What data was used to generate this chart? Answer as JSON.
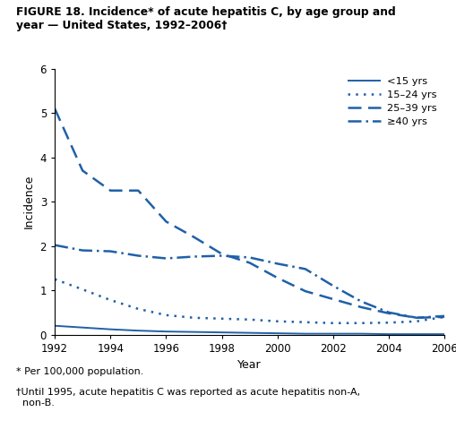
{
  "title_line1": "FIGURE 18. Incidence* of acute hepatitis C, by age group and",
  "title_line2": "year — United States, 1992–2006†",
  "xlabel": "Year",
  "ylabel": "Incidence",
  "xlim": [
    1992,
    2006
  ],
  "ylim": [
    0,
    6
  ],
  "yticks": [
    0,
    1,
    2,
    3,
    4,
    5,
    6
  ],
  "xticks": [
    1992,
    1994,
    1996,
    1998,
    2000,
    2002,
    2004,
    2006
  ],
  "footnote1": "* Per 100,000 population.",
  "footnote2": "†Until 1995, acute hepatitis C was reported as acute hepatitis non-A,\n  non-B.",
  "color": "#2060a8",
  "series": [
    {
      "label": "<15 yrs",
      "linestyle": "solid",
      "linewidth": 1.4,
      "years": [
        1992,
        1993,
        1994,
        1995,
        1996,
        1997,
        1998,
        1999,
        2000,
        2001,
        2002,
        2003,
        2004,
        2005,
        2006
      ],
      "values": [
        0.2,
        0.16,
        0.12,
        0.09,
        0.07,
        0.06,
        0.05,
        0.04,
        0.03,
        0.02,
        0.02,
        0.02,
        0.01,
        0.01,
        0.01
      ]
    },
    {
      "label": "15–24 yrs",
      "linestyle": "dotted",
      "linewidth": 1.8,
      "years": [
        1992,
        1993,
        1994,
        1995,
        1996,
        1997,
        1998,
        1999,
        2000,
        2001,
        2002,
        2003,
        2004,
        2005,
        2006
      ],
      "values": [
        1.25,
        1.02,
        0.78,
        0.58,
        0.44,
        0.38,
        0.36,
        0.34,
        0.3,
        0.28,
        0.26,
        0.26,
        0.27,
        0.3,
        0.4
      ]
    },
    {
      "label": "25–39 yrs",
      "linestyle": "dashed",
      "linewidth": 1.8,
      "years": [
        1992,
        1993,
        1994,
        1995,
        1996,
        1997,
        1998,
        1999,
        2000,
        2001,
        2002,
        2003,
        2004,
        2005,
        2006
      ],
      "values": [
        5.1,
        3.7,
        3.25,
        3.25,
        2.55,
        2.2,
        1.82,
        1.62,
        1.28,
        0.98,
        0.8,
        0.62,
        0.48,
        0.38,
        0.4
      ]
    },
    {
      "label": "≥40 yrs",
      "linestyle": "dashdot",
      "linewidth": 1.8,
      "years": [
        1992,
        1993,
        1994,
        1995,
        1996,
        1997,
        1998,
        1999,
        2000,
        2001,
        2002,
        2003,
        2004,
        2005,
        2006
      ],
      "values": [
        2.02,
        1.9,
        1.88,
        1.78,
        1.72,
        1.76,
        1.78,
        1.74,
        1.6,
        1.48,
        1.1,
        0.75,
        0.5,
        0.38,
        0.42
      ]
    }
  ]
}
